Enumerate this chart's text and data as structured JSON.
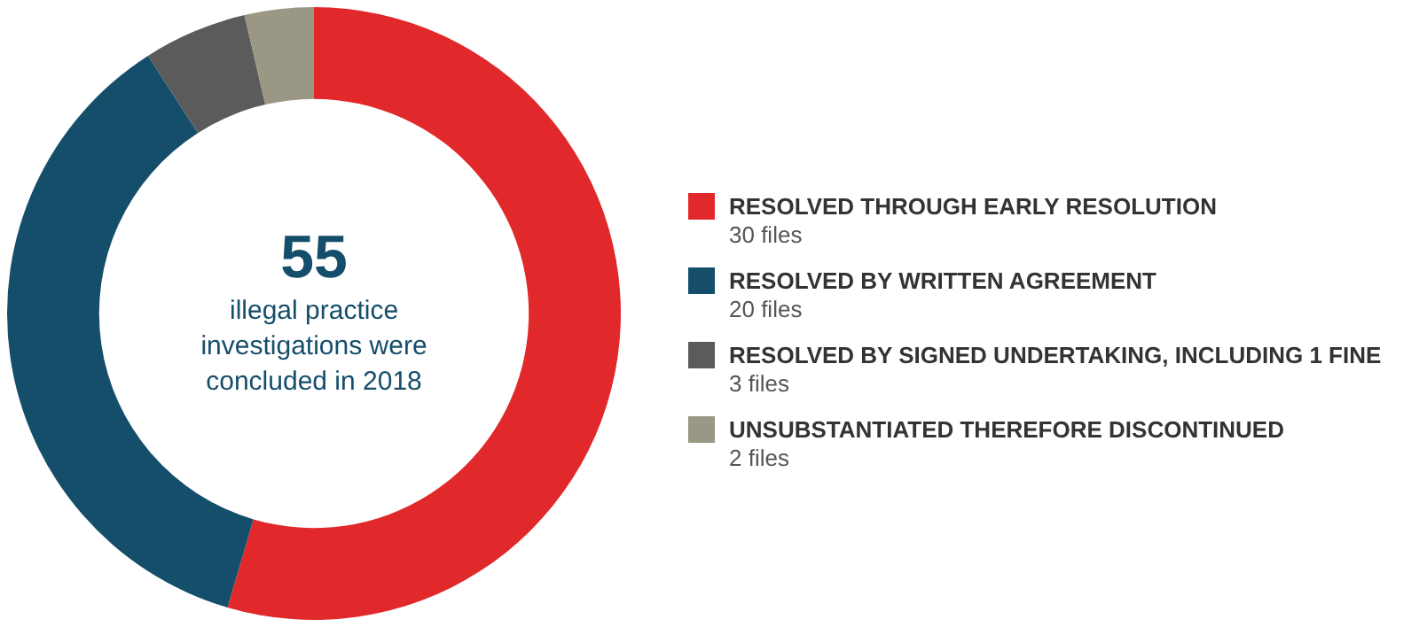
{
  "chart_data": {
    "type": "donut",
    "categories": [
      "RESOLVED THROUGH EARLY RESOLUTION",
      "RESOLVED BY WRITTEN AGREEMENT",
      "RESOLVED BY SIGNED UNDERTAKING, INCLUDING 1 FINE",
      "UNSUBSTANTIATED THEREFORE DISCONTINUED"
    ],
    "values": [
      30,
      20,
      3,
      2
    ],
    "value_labels": [
      "30 files",
      "20 files",
      "3 files",
      "2 files"
    ],
    "colors": [
      "#e1282a",
      "#154e6b",
      "#5b5b5b",
      "#9a9884"
    ],
    "annotations": [
      "55",
      "illegal practice investigations were concluded in 2018"
    ],
    "legend": "right"
  }
}
